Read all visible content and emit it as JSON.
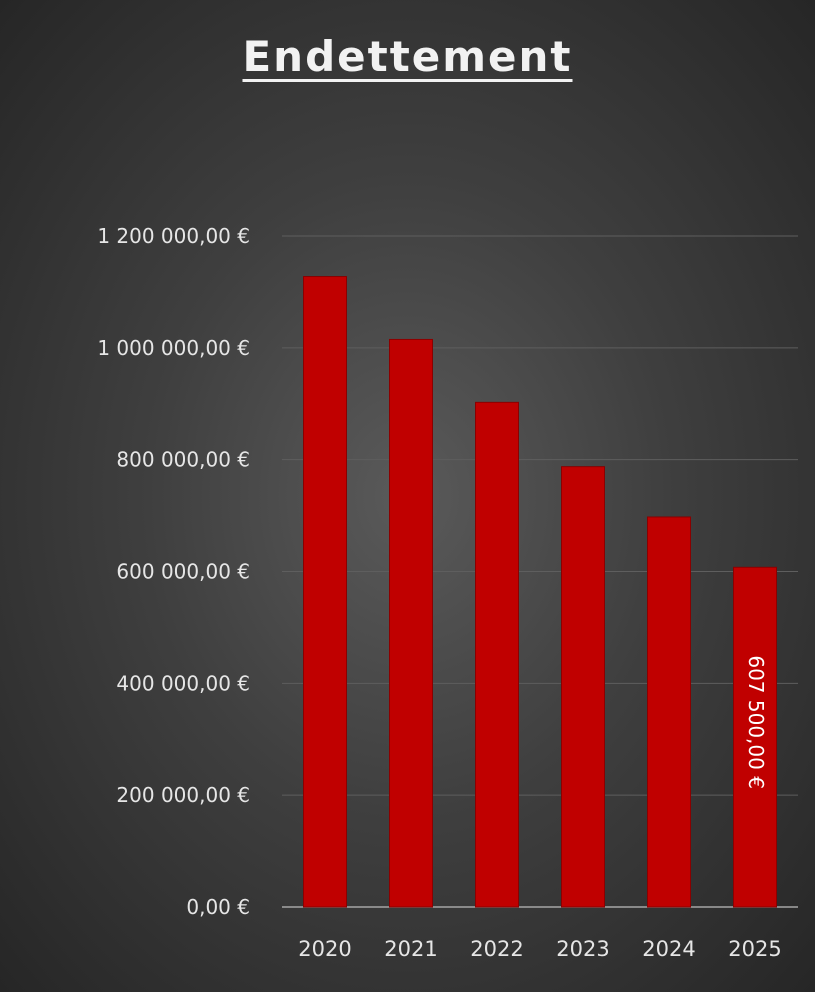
{
  "chart_data": {
    "type": "bar",
    "title": "Endettement",
    "xlabel": "",
    "ylabel": "",
    "categories": [
      "2020",
      "2021",
      "2022",
      "2023",
      "2024",
      "2025"
    ],
    "values": [
      1127500,
      1015000,
      902500,
      787500,
      697500,
      607500
    ],
    "ylim": [
      0,
      1200000
    ],
    "yticks": [
      0,
      200000,
      400000,
      600000,
      800000,
      1000000,
      1200000
    ],
    "ytick_labels": [
      "0,00 €",
      "200 000,00 €",
      "400 000,00 €",
      "600 000,00 €",
      "800 000,00 €",
      "1 000 000,00 €",
      "1 200 000,00 €"
    ],
    "data_labels": [
      {
        "category": "2025",
        "text": "607 500,00 €"
      }
    ],
    "grid": true,
    "legend": "none",
    "colors": {
      "bar": "#c00000",
      "bar_border": "#8b0000",
      "gridline": "#5e5e5e",
      "axis_line": "#a6a6a6",
      "text": "#e6e6e6"
    }
  }
}
